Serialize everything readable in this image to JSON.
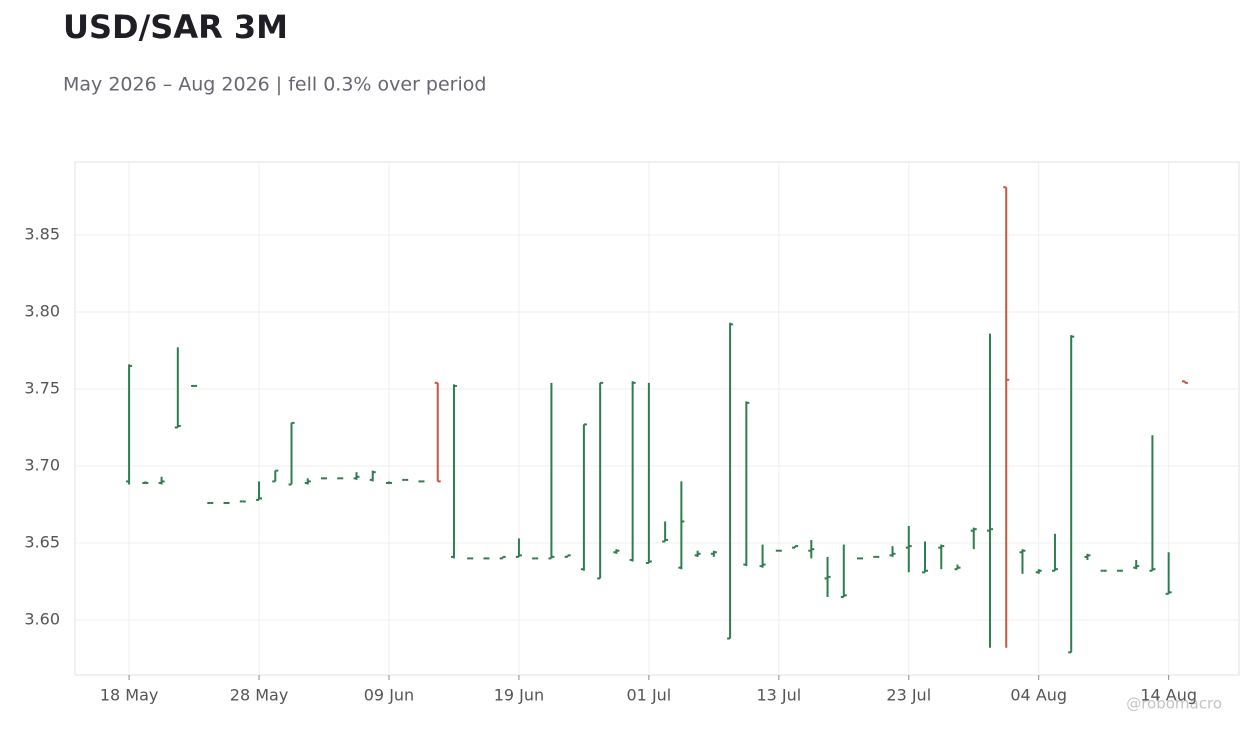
{
  "chart_data": {
    "type": "ohlc",
    "title": "USD/SAR 3M",
    "subtitle": "May 2026 – Aug 2026 | fell 0.3% over period",
    "watermark": "@robomacro",
    "categories": [
      "18 May",
      null,
      null,
      null,
      null,
      null,
      null,
      null,
      "28 May",
      null,
      null,
      null,
      null,
      null,
      null,
      null,
      "09 Jun",
      null,
      null,
      null,
      null,
      null,
      null,
      null,
      "19 Jun",
      null,
      null,
      null,
      null,
      null,
      null,
      null,
      "01 Jul",
      null,
      null,
      null,
      null,
      null,
      null,
      null,
      "13 Jul",
      null,
      null,
      null,
      null,
      null,
      null,
      null,
      "23 Jul",
      null,
      null,
      null,
      null,
      null,
      null,
      null,
      "04 Aug",
      null,
      null,
      null,
      null,
      null,
      null,
      null,
      "14 Aug",
      null
    ],
    "open": [
      3.69,
      3.689,
      3.689,
      3.725,
      3.752,
      3.676,
      3.676,
      3.677,
      3.678,
      3.69,
      3.688,
      3.689,
      3.692,
      3.692,
      3.692,
      3.691,
      3.689,
      3.691,
      3.69,
      3.754,
      3.641,
      3.64,
      3.64,
      3.64,
      3.641,
      3.64,
      3.64,
      3.641,
      3.633,
      3.627,
      3.644,
      3.639,
      3.637,
      3.651,
      3.634,
      3.642,
      3.643,
      3.588,
      3.636,
      3.635,
      3.645,
      3.647,
      3.645,
      3.627,
      3.615,
      3.64,
      3.641,
      3.642,
      3.647,
      3.631,
      3.647,
      3.633,
      3.658,
      3.658,
      3.881,
      3.644,
      3.631,
      3.632,
      3.579,
      3.641,
      3.632,
      3.632,
      3.634,
      3.632,
      3.617,
      3.755
    ],
    "high": [
      3.766,
      3.69,
      3.693,
      3.777,
      3.752,
      3.676,
      3.676,
      3.677,
      3.69,
      3.697,
      3.728,
      3.692,
      3.692,
      3.692,
      3.696,
      3.697,
      3.69,
      3.691,
      3.69,
      3.754,
      3.753,
      3.64,
      3.64,
      3.641,
      3.653,
      3.64,
      3.754,
      3.642,
      3.727,
      3.754,
      3.646,
      3.755,
      3.754,
      3.664,
      3.69,
      3.645,
      3.645,
      3.793,
      3.742,
      3.649,
      3.645,
      3.648,
      3.652,
      3.641,
      3.649,
      3.64,
      3.641,
      3.648,
      3.661,
      3.651,
      3.649,
      3.636,
      3.66,
      3.786,
      3.881,
      3.646,
      3.633,
      3.656,
      3.785,
      3.643,
      3.632,
      3.632,
      3.639,
      3.72,
      3.644,
      3.755
    ],
    "low": [
      3.688,
      3.689,
      3.688,
      3.725,
      3.752,
      3.676,
      3.676,
      3.677,
      3.678,
      3.69,
      3.688,
      3.688,
      3.692,
      3.692,
      3.691,
      3.69,
      3.689,
      3.691,
      3.69,
      3.69,
      3.64,
      3.64,
      3.64,
      3.64,
      3.641,
      3.64,
      3.64,
      3.641,
      3.632,
      3.627,
      3.643,
      3.638,
      3.637,
      3.651,
      3.633,
      3.641,
      3.641,
      3.588,
      3.635,
      3.634,
      3.645,
      3.647,
      3.64,
      3.615,
      3.615,
      3.64,
      3.641,
      3.641,
      3.631,
      3.631,
      3.633,
      3.633,
      3.646,
      3.582,
      3.582,
      3.63,
      3.63,
      3.632,
      3.579,
      3.639,
      3.632,
      3.632,
      3.633,
      3.632,
      3.617,
      3.754
    ],
    "close": [
      3.765,
      3.689,
      3.69,
      3.726,
      3.752,
      3.676,
      3.676,
      3.677,
      3.679,
      3.697,
      3.728,
      3.69,
      3.692,
      3.692,
      3.693,
      3.696,
      3.689,
      3.691,
      3.69,
      3.69,
      3.752,
      3.64,
      3.64,
      3.641,
      3.642,
      3.64,
      3.641,
      3.642,
      3.727,
      3.754,
      3.645,
      3.754,
      3.638,
      3.652,
      3.664,
      3.643,
      3.644,
      3.792,
      3.741,
      3.636,
      3.645,
      3.648,
      3.646,
      3.628,
      3.616,
      3.64,
      3.641,
      3.643,
      3.648,
      3.632,
      3.648,
      3.634,
      3.659,
      3.659,
      3.756,
      3.645,
      3.632,
      3.633,
      3.784,
      3.642,
      3.632,
      3.632,
      3.635,
      3.633,
      3.618,
      3.754
    ],
    "up_color": "#2e7d4f",
    "down_color": "#c8553d",
    "ylim": [
      3.5643,
      3.8974
    ],
    "yticks": [
      {
        "value": 3.6,
        "label": "3.60"
      },
      3.65,
      {
        "value": 3.7,
        "label": "3.70"
      },
      3.75,
      {
        "value": 3.8,
        "label": "3.80"
      },
      3.85
    ],
    "grid": true
  }
}
